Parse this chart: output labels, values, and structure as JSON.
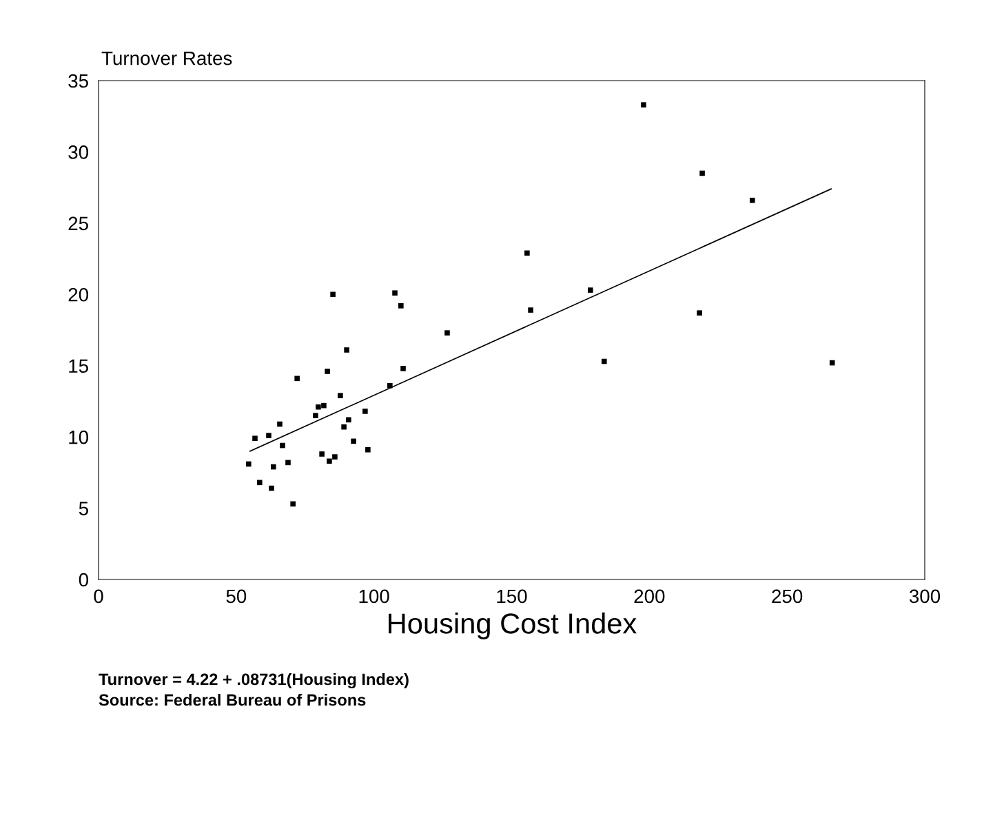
{
  "chart_data": {
    "type": "scatter",
    "ylabel": "Turnover Rates",
    "xlabel": "Housing Cost Index",
    "xlim": [
      0,
      300
    ],
    "xticks": [
      0,
      50,
      100,
      150,
      200,
      250,
      300
    ],
    "ylim": [
      0,
      35
    ],
    "yticks": [
      0,
      5,
      10,
      15,
      20,
      25,
      30,
      35
    ],
    "grid": false,
    "legend": false,
    "series": [
      {
        "marker": "square",
        "color": "#000000",
        "x": [
          54.5,
          56.8,
          58.5,
          61.8,
          62.8,
          63.5,
          65.8,
          66.8,
          68.8,
          70.6,
          72.1,
          78.8,
          79.8,
          81.8,
          81.1,
          83.1,
          83.8,
          85.1,
          85.8,
          87.8,
          89.1,
          90.1,
          90.8,
          92.6,
          96.8,
          97.8,
          105.8,
          107.6,
          109.8,
          110.6,
          126.6,
          155.6,
          156.9,
          178.6,
          183.6,
          197.9,
          218.2,
          219.2,
          237.4,
          266.4
        ],
        "values": [
          8.1,
          9.9,
          6.8,
          10.1,
          6.4,
          7.9,
          10.9,
          9.4,
          8.2,
          5.3,
          14.1,
          11.5,
          12.1,
          12.2,
          8.8,
          14.6,
          8.3,
          20.0,
          8.6,
          12.9,
          10.7,
          16.1,
          11.2,
          9.7,
          11.8,
          9.1,
          13.6,
          20.1,
          19.2,
          14.8,
          17.3,
          22.9,
          18.9,
          20.3,
          15.3,
          33.3,
          18.7,
          28.5,
          26.6,
          15.2
        ]
      },
      {
        "type": "line",
        "color": "#000000",
        "x": [
          55,
          266
        ],
        "values": [
          9.0,
          27.4
        ]
      }
    ],
    "annotations": [
      "Turnover = 4.22 + .08731(Housing Index)",
      "Source: Federal Bureau of Prisons"
    ]
  }
}
